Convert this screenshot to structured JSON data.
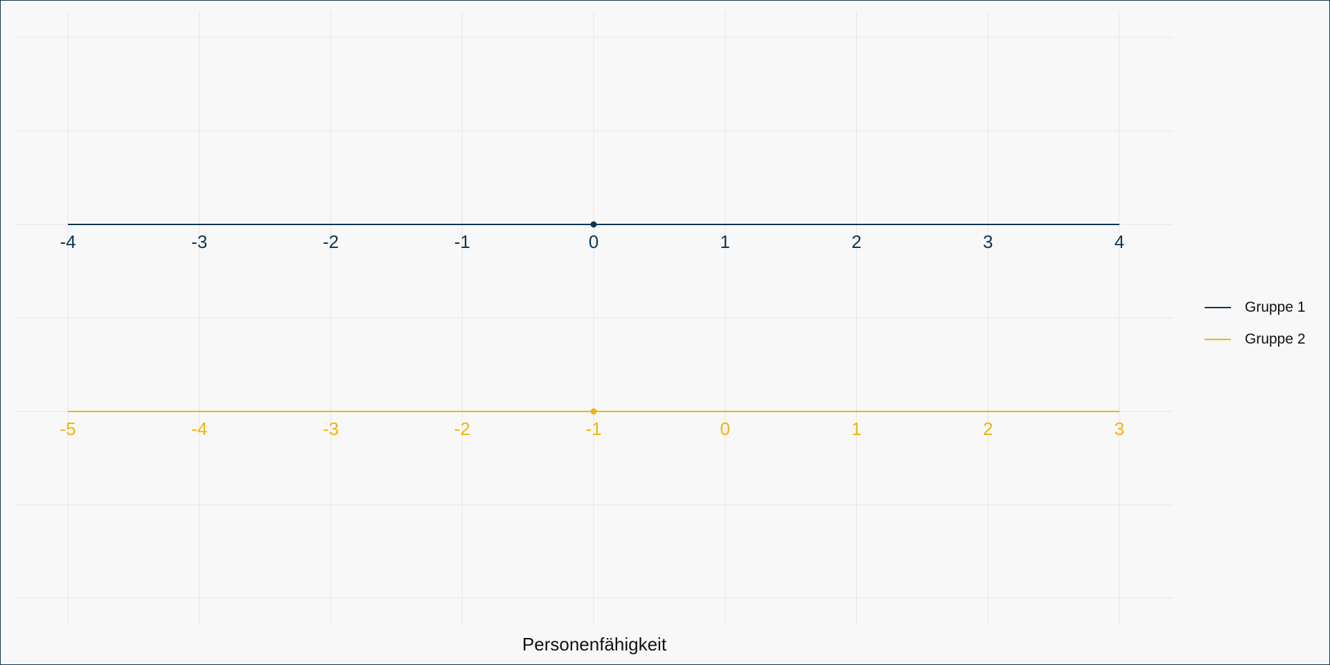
{
  "chart_data": {
    "type": "line",
    "xlabel": "Personenfähigkeit",
    "grid": true,
    "legend_position": "right",
    "series": [
      {
        "name": "Gruppe 1",
        "color": "#0e3550",
        "x": [
          -4,
          4
        ],
        "ticks": [
          "-4",
          "-3",
          "-2",
          "-1",
          "0",
          "1",
          "2",
          "3",
          "4"
        ],
        "point": 0
      },
      {
        "name": "Gruppe 2",
        "color": "#f2b40a",
        "x": [
          -5,
          3
        ],
        "ticks": [
          "-5",
          "-4",
          "-3",
          "-2",
          "-1",
          "0",
          "1",
          "2",
          "3"
        ],
        "point": -1
      }
    ]
  },
  "legend": {
    "items": [
      {
        "label": "Gruppe 1",
        "color": "#0e3550"
      },
      {
        "label": "Gruppe 2",
        "color": "#f2b40a"
      }
    ]
  }
}
